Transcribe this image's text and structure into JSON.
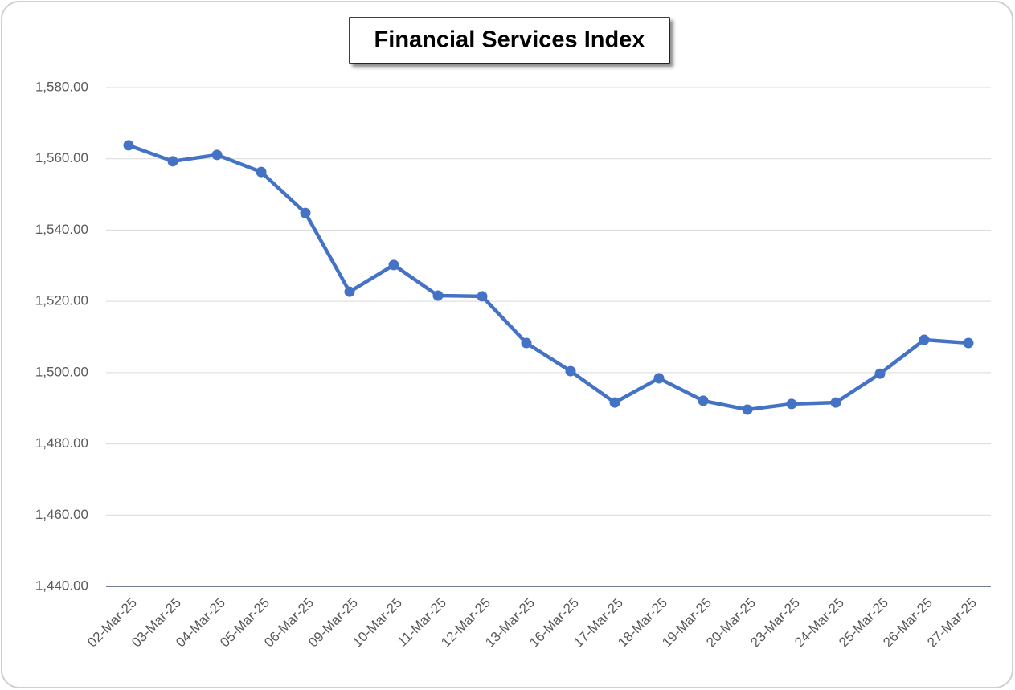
{
  "chart_data": {
    "type": "line",
    "title": "Financial Services Index",
    "categories": [
      "02-Mar-25",
      "03-Mar-25",
      "04-Mar-25",
      "05-Mar-25",
      "06-Mar-25",
      "09-Mar-25",
      "10-Mar-25",
      "11-Mar-25",
      "12-Mar-25",
      "13-Mar-25",
      "16-Mar-25",
      "17-Mar-25",
      "18-Mar-25",
      "19-Mar-25",
      "20-Mar-25",
      "23-Mar-25",
      "24-Mar-25",
      "25-Mar-25",
      "26-Mar-25",
      "27-Mar-25"
    ],
    "values": [
      1563.8,
      1559.3,
      1561.1,
      1556.3,
      1544.8,
      1522.7,
      1530.2,
      1521.6,
      1521.4,
      1508.3,
      1500.4,
      1491.6,
      1498.4,
      1492.1,
      1489.6,
      1491.2,
      1491.6,
      1499.7,
      1509.2,
      1508.3
    ],
    "color": "#4472c4",
    "ylim": [
      1440,
      1580
    ],
    "yticks": [
      {
        "value": 1440,
        "label": "1,440.00"
      },
      {
        "value": 1460,
        "label": "1,460.00"
      },
      {
        "value": 1480,
        "label": "1,480.00"
      },
      {
        "value": 1500,
        "label": "1,500.00"
      },
      {
        "value": 1520,
        "label": "1,520.00"
      },
      {
        "value": 1540,
        "label": "1,540.00"
      },
      {
        "value": 1560,
        "label": "1,560.00"
      },
      {
        "value": 1580,
        "label": "1,580.00"
      }
    ],
    "grid": true
  }
}
